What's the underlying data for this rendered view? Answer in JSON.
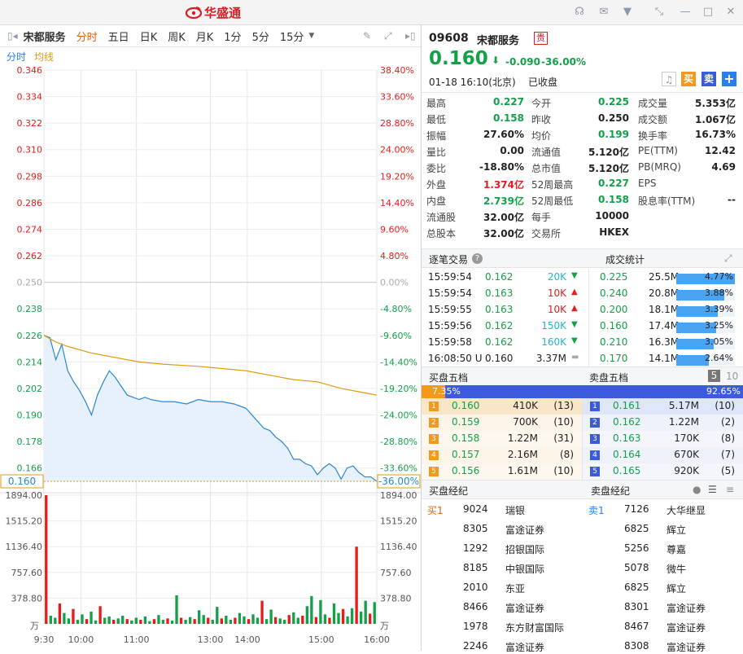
{
  "app": {
    "logo_text": "华盛通",
    "colors": {
      "up": "#e41c1c",
      "down": "#14a049",
      "accent": "#e0620c",
      "blue": "#2a7ef0"
    }
  },
  "window_icons": [
    "headset-icon",
    "mail-icon",
    "shirt-icon",
    "shrink-icon",
    "minimize-icon",
    "maximize-icon",
    "close-icon"
  ],
  "toolbar": {
    "stock_name": "宋都服务",
    "periods": [
      "分时",
      "五日",
      "日K",
      "周K",
      "月K",
      "1分",
      "5分",
      "15分"
    ],
    "active": 0
  },
  "legend": {
    "a": "分时",
    "b": "均线"
  },
  "quote": {
    "code": "09608",
    "name": "宋都服务",
    "badge": "贵",
    "price": "0.160",
    "change": "-0.090",
    "pct": "-36.00%",
    "time": "01-18  16:10(北京)",
    "status": "已收盘",
    "btn_buy": "买",
    "btn_sell": "卖"
  },
  "stats": [
    [
      [
        "最高",
        "0.227",
        "grn"
      ],
      [
        "今开",
        "0.225",
        "grn"
      ],
      [
        "成交量",
        "5.353亿",
        ""
      ]
    ],
    [
      [
        "最低",
        "0.158",
        "grn"
      ],
      [
        "昨收",
        "0.250",
        ""
      ],
      [
        "成交额",
        "1.067亿",
        ""
      ]
    ],
    [
      [
        "振幅",
        "27.60%",
        ""
      ],
      [
        "均价",
        "0.199",
        "grn"
      ],
      [
        "换手率",
        "16.73%",
        ""
      ]
    ],
    [
      [
        "量比",
        "0.00",
        ""
      ],
      [
        "流通值",
        "5.120亿",
        ""
      ],
      [
        "PE(TTM)",
        "12.42",
        ""
      ]
    ],
    [
      [
        "委比",
        "-18.80%",
        ""
      ],
      [
        "总市值",
        "5.120亿",
        ""
      ],
      [
        "PB(MRQ)",
        "4.69",
        ""
      ]
    ],
    [
      [
        "外盘",
        "1.374亿",
        "red"
      ],
      [
        "52周最高",
        "0.227",
        "grn"
      ],
      [
        "EPS",
        "",
        ""
      ]
    ],
    [
      [
        "内盘",
        "2.739亿",
        "grn"
      ],
      [
        "52周最低",
        "0.158",
        "grn"
      ],
      [
        "股息率(TTM)",
        "--",
        ""
      ]
    ],
    [
      [
        "流通股",
        "32.00亿",
        ""
      ],
      [
        "每手",
        "10000",
        ""
      ],
      [
        "",
        "",
        " "
      ]
    ],
    [
      [
        "总股本",
        "32.00亿",
        ""
      ],
      [
        "交易所",
        "HKEX",
        ""
      ],
      [
        "",
        "",
        " "
      ]
    ]
  ],
  "ticks": {
    "title": "逐笔交易",
    "title2": "成交统计",
    "rows": [
      {
        "t": "15:59:54",
        "p": "0.162",
        "v": "20K",
        "d": "down"
      },
      {
        "t": "15:59:54",
        "p": "0.163",
        "v": "10K",
        "d": "up"
      },
      {
        "t": "15:59:55",
        "p": "0.163",
        "v": "10K",
        "d": "up"
      },
      {
        "t": "15:59:56",
        "p": "0.162",
        "v": "150K",
        "d": "down"
      },
      {
        "t": "15:59:58",
        "p": "0.162",
        "v": "160K",
        "d": "down"
      },
      {
        "t": "16:08:50 U",
        "p": "0.160",
        "v": "3.37M",
        "d": "flat"
      }
    ]
  },
  "volstats": [
    {
      "p": "0.225",
      "v": "25.5M",
      "pct": "4.77%",
      "frac": 0.0477
    },
    {
      "p": "0.240",
      "v": "20.8M",
      "pct": "3.88%",
      "frac": 0.0388
    },
    {
      "p": "0.200",
      "v": "18.1M",
      "pct": "3.39%",
      "frac": 0.0339
    },
    {
      "p": "0.160",
      "v": "17.4M",
      "pct": "3.25%",
      "frac": 0.0325
    },
    {
      "p": "0.210",
      "v": "16.3M",
      "pct": "3.05%",
      "frac": 0.0305
    },
    {
      "p": "0.170",
      "v": "14.1M",
      "pct": "2.64%",
      "frac": 0.0264
    }
  ],
  "book": {
    "buy_title": "买盘五档",
    "sell_title": "卖盘五档",
    "tab5": "5",
    "tab10": "10",
    "buy_pct": "7.35%",
    "sell_pct": "92.65%",
    "buy_frac": 0.0735,
    "bids": [
      [
        "1",
        "0.160",
        "410K",
        "(13)"
      ],
      [
        "2",
        "0.159",
        "700K",
        "(10)"
      ],
      [
        "3",
        "0.158",
        "1.22M",
        "(31)"
      ],
      [
        "4",
        "0.157",
        "2.16M",
        "(8)"
      ],
      [
        "5",
        "0.156",
        "1.61M",
        "(10)"
      ]
    ],
    "asks": [
      [
        "1",
        "0.161",
        "5.17M",
        "(10)"
      ],
      [
        "2",
        "0.162",
        "1.22M",
        "(2)"
      ],
      [
        "3",
        "0.163",
        "170K",
        "(8)"
      ],
      [
        "4",
        "0.164",
        "670K",
        "(7)"
      ],
      [
        "5",
        "0.165",
        "920K",
        "(5)"
      ]
    ]
  },
  "brokers": {
    "buy_title": "买盘经纪",
    "sell_title": "卖盘经纪",
    "buy_label": "买1",
    "sell_label": "卖1",
    "buy": [
      [
        "9024",
        "瑞银"
      ],
      [
        "8305",
        "富途证券"
      ],
      [
        "1292",
        "招银国际"
      ],
      [
        "8185",
        "中银国际"
      ],
      [
        "2010",
        "东亚"
      ],
      [
        "8466",
        "富途证券"
      ],
      [
        "1978",
        "东方财富国际"
      ],
      [
        "2246",
        "富途证券"
      ]
    ],
    "sell": [
      [
        "7126",
        "大华继显"
      ],
      [
        "6825",
        "辉立"
      ],
      [
        "5256",
        "尊嘉"
      ],
      [
        "5078",
        "微牛"
      ],
      [
        "6825",
        "辉立"
      ],
      [
        "8301",
        "富途证券"
      ],
      [
        "8467",
        "富途证券"
      ],
      [
        "8308",
        "富途证券"
      ]
    ]
  },
  "chart_data": {
    "type": "line",
    "prev_close": 0.25,
    "current": "0.160",
    "current_pct": "-36.00%",
    "price_ticks": [
      "0.346",
      "0.334",
      "0.322",
      "0.310",
      "0.298",
      "0.286",
      "0.274",
      "0.262",
      "0.250",
      "0.238",
      "0.226",
      "0.214",
      "0.202",
      "0.190",
      "0.178",
      "0.166"
    ],
    "pct_ticks": [
      "38.40%",
      "33.60%",
      "28.80%",
      "24.00%",
      "19.20%",
      "14.40%",
      "9.60%",
      "4.80%",
      "0.00%",
      "-4.80%",
      "-9.60%",
      "-14.40%",
      "-19.20%",
      "-24.00%",
      "-28.80%",
      "-33.60%"
    ],
    "vol_ticks": [
      "1894.00",
      "1515.20",
      "1136.40",
      "757.60",
      "378.80"
    ],
    "vol_unit": "万",
    "time_ticks": [
      "9:30",
      "10:00",
      "11:00",
      "13:00",
      "14:00",
      "15:00",
      "16:00"
    ],
    "price": [
      [
        0,
        0.226
      ],
      [
        5,
        0.225
      ],
      [
        10,
        0.215
      ],
      [
        15,
        0.222
      ],
      [
        20,
        0.21
      ],
      [
        25,
        0.205
      ],
      [
        30,
        0.201
      ],
      [
        35,
        0.196
      ],
      [
        40,
        0.19
      ],
      [
        45,
        0.199
      ],
      [
        50,
        0.205
      ],
      [
        55,
        0.21
      ],
      [
        60,
        0.207
      ],
      [
        65,
        0.203
      ],
      [
        70,
        0.199
      ],
      [
        75,
        0.198
      ],
      [
        80,
        0.197
      ],
      [
        85,
        0.198
      ],
      [
        90,
        0.197
      ],
      [
        100,
        0.196
      ],
      [
        110,
        0.196
      ],
      [
        120,
        0.195
      ],
      [
        130,
        0.197
      ],
      [
        140,
        0.196
      ],
      [
        150,
        0.196
      ],
      [
        160,
        0.195
      ],
      [
        165,
        0.194
      ],
      [
        170,
        0.193
      ],
      [
        175,
        0.19
      ],
      [
        180,
        0.187
      ],
      [
        185,
        0.184
      ],
      [
        190,
        0.183
      ],
      [
        195,
        0.18
      ],
      [
        200,
        0.178
      ],
      [
        205,
        0.175
      ],
      [
        210,
        0.17
      ],
      [
        215,
        0.17
      ],
      [
        220,
        0.168
      ],
      [
        225,
        0.167
      ],
      [
        230,
        0.163
      ],
      [
        235,
        0.166
      ],
      [
        240,
        0.168
      ],
      [
        245,
        0.166
      ],
      [
        250,
        0.161
      ],
      [
        255,
        0.166
      ],
      [
        260,
        0.167
      ],
      [
        265,
        0.164
      ],
      [
        270,
        0.162
      ],
      [
        275,
        0.162
      ],
      [
        280,
        0.16
      ]
    ],
    "avg": [
      [
        0,
        0.226
      ],
      [
        10,
        0.223
      ],
      [
        20,
        0.221
      ],
      [
        40,
        0.218
      ],
      [
        60,
        0.216
      ],
      [
        80,
        0.214
      ],
      [
        100,
        0.213
      ],
      [
        130,
        0.212
      ],
      [
        150,
        0.211
      ],
      [
        170,
        0.21
      ],
      [
        190,
        0.208
      ],
      [
        210,
        0.206
      ],
      [
        230,
        0.205
      ],
      [
        250,
        0.202
      ],
      [
        270,
        0.2
      ],
      [
        280,
        0.199
      ]
    ],
    "volume": [
      1894,
      120,
      90,
      300,
      160,
      80,
      220,
      60,
      140,
      70,
      180,
      50,
      260,
      90,
      110,
      60,
      80,
      120,
      70,
      50,
      90,
      60,
      110,
      40,
      70,
      130,
      60,
      80,
      50,
      420,
      90,
      60,
      100,
      70,
      200,
      130,
      90,
      60,
      250,
      80,
      120,
      60,
      90,
      160,
      110,
      70,
      140,
      90,
      340,
      70,
      210,
      100,
      80,
      60,
      130,
      170,
      90,
      120,
      260,
      410,
      100,
      350,
      140,
      90,
      300,
      160,
      220,
      110,
      230,
      1136,
      180,
      340,
      150,
      320
    ]
  }
}
